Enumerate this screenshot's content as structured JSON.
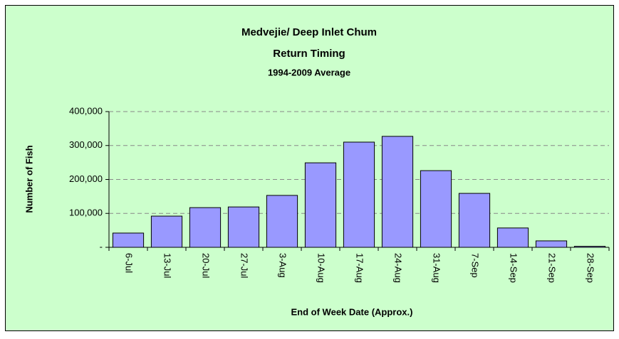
{
  "chart_data": {
    "type": "bar",
    "title": "Medvejie/ Deep Inlet Chum",
    "subtitle": "Return Timing",
    "subtitle2": "1994-2009 Average",
    "x_label": "End of Week Date (Approx.)",
    "y_label": "Number of Fish",
    "categories": [
      "6-Jul",
      "13-Jul",
      "20-Jul",
      "27-Jul",
      "3-Aug",
      "10-Aug",
      "17-Aug",
      "24-Aug",
      "31-Aug",
      "7-Sep",
      "14-Sep",
      "21-Sep",
      "28-Sep"
    ],
    "values": [
      42000,
      92000,
      117000,
      119000,
      153000,
      249000,
      310000,
      327000,
      226000,
      159000,
      57000,
      19000,
      3000
    ],
    "color": "#9999ff",
    "ylim": [
      0,
      400000
    ],
    "yticks": [
      {
        "value": 0,
        "label": "-"
      },
      {
        "value": 100000,
        "label": "100,000"
      },
      {
        "value": 200000,
        "label": "200,000"
      },
      {
        "value": 300000,
        "label": "300,000"
      },
      {
        "value": 400000,
        "label": "400,000"
      }
    ],
    "grid": true
  }
}
